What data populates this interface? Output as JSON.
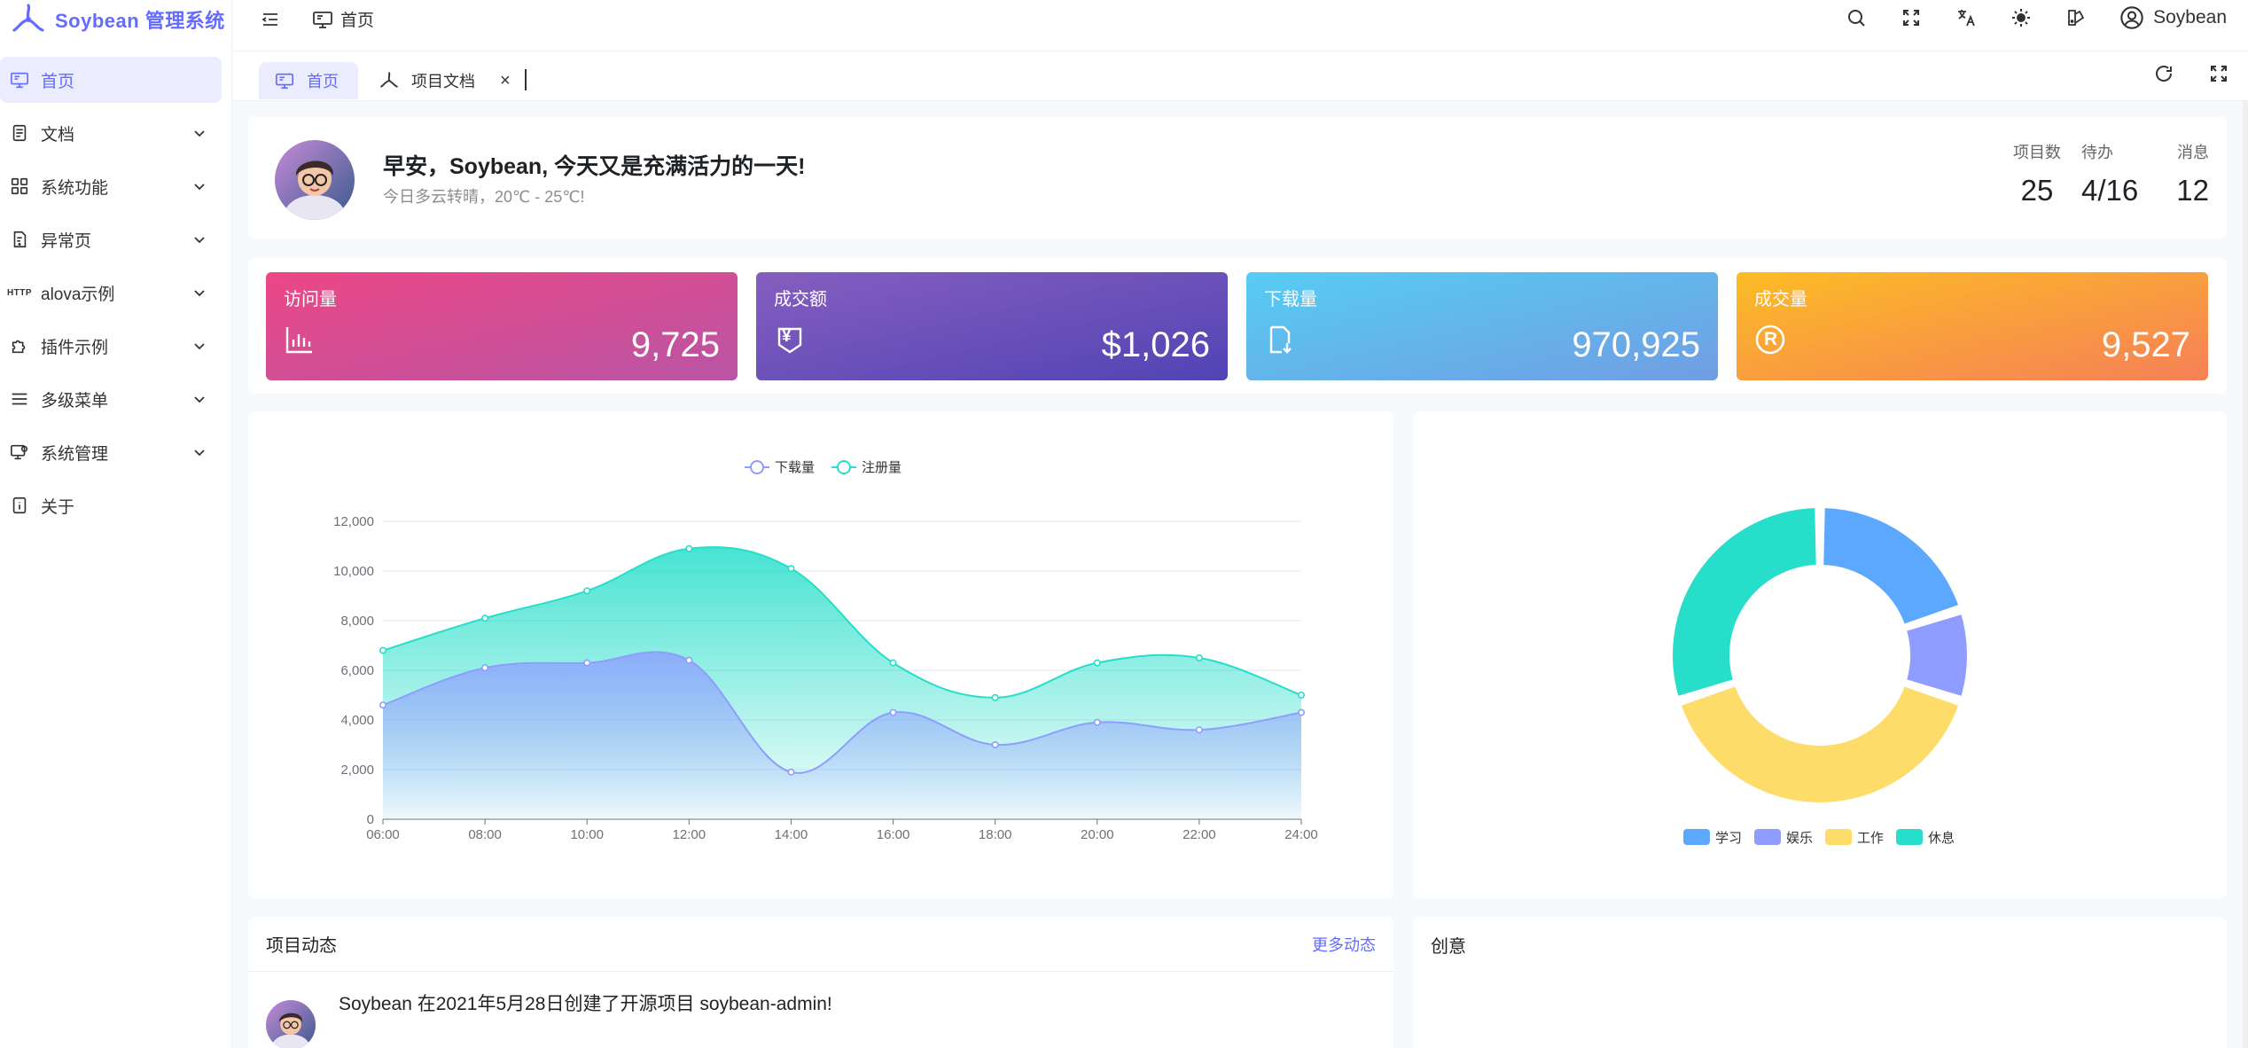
{
  "app": {
    "title": "Soybean 管理系统"
  },
  "colors": {
    "primary": "#646cff"
  },
  "sidebar": {
    "items": [
      {
        "label": "首页",
        "icon": "monitor-icon",
        "active": true
      },
      {
        "label": "文档",
        "icon": "document-icon",
        "expandable": true
      },
      {
        "label": "系统功能",
        "icon": "grid-icon",
        "expandable": true
      },
      {
        "label": "异常页",
        "icon": "exception-icon",
        "expandable": true
      },
      {
        "label": "alova示例",
        "icon": "http-icon",
        "icon_text": "HTTP",
        "expandable": true
      },
      {
        "label": "插件示例",
        "icon": "puzzle-icon",
        "expandable": true
      },
      {
        "label": "多级菜单",
        "icon": "menu-lines-icon",
        "expandable": true
      },
      {
        "label": "系统管理",
        "icon": "settings-monitor-icon",
        "expandable": true
      },
      {
        "label": "关于",
        "icon": "info-icon"
      }
    ]
  },
  "header": {
    "breadcrumb": "首页",
    "user": "Soybean"
  },
  "tabs": [
    {
      "label": "首页",
      "active": true
    },
    {
      "label": "项目文档",
      "closable": true,
      "close_glyph": "×"
    }
  ],
  "greeting": {
    "title": "早安，Soybean, 今天又是充满活力的一天!",
    "subtitle": "今日多云转晴，20℃ - 25℃!",
    "stats": [
      {
        "label": "项目数",
        "value": "25"
      },
      {
        "label": "待办",
        "value": "4/16"
      },
      {
        "label": "消息",
        "value": "12"
      }
    ]
  },
  "metrics": [
    {
      "title": "访问量",
      "value": "9,725",
      "icon": "bar-chart-icon",
      "from": "#ec4786",
      "to": "#b955a4"
    },
    {
      "title": "成交额",
      "value": "$1,026",
      "icon": "money-icon",
      "from": "#865ec0",
      "to": "#5144b4"
    },
    {
      "title": "下载量",
      "value": "970,925",
      "icon": "download-file-icon",
      "from": "#56cdf3",
      "to": "#719de3"
    },
    {
      "title": "成交量",
      "value": "9,527",
      "icon": "registered-icon",
      "icon_text": "R",
      "from": "#fcbc25",
      "to": "#f68057"
    }
  ],
  "money_glyph": "¥",
  "chart_data": [
    {
      "type": "area",
      "x": [
        "06:00",
        "08:00",
        "10:00",
        "12:00",
        "14:00",
        "16:00",
        "18:00",
        "20:00",
        "22:00",
        "24:00"
      ],
      "ylim": [
        0,
        12000
      ],
      "yticks": [
        "0",
        "2,000",
        "4,000",
        "6,000",
        "8,000",
        "10,000",
        "12,000"
      ],
      "legend_position": "top-center",
      "grid": true,
      "series": [
        {
          "name": "下载量",
          "values": [
            4600,
            6100,
            6300,
            6400,
            1900,
            4300,
            3000,
            3900,
            3600,
            4300
          ],
          "color": "#8e9dff"
        },
        {
          "name": "注册量",
          "values": [
            6800,
            8100,
            9200,
            10900,
            10100,
            6300,
            4900,
            6300,
            6500,
            5000
          ],
          "color": "#26deca"
        }
      ]
    },
    {
      "type": "pie",
      "legend_position": "bottom-center",
      "slices": [
        {
          "name": "学习",
          "value": 20,
          "color": "#5da8ff"
        },
        {
          "name": "娱乐",
          "value": 10,
          "color": "#8e9dff"
        },
        {
          "name": "工作",
          "value": 40,
          "color": "#fedc69"
        },
        {
          "name": "休息",
          "value": 30,
          "color": "#26deca"
        }
      ]
    }
  ],
  "activity": {
    "title": "项目动态",
    "more": "更多动态",
    "items": [
      {
        "text": "Soybean 在2021年5月28日创建了开源项目 soybean-admin!"
      }
    ]
  },
  "idea": {
    "title": "创意"
  }
}
